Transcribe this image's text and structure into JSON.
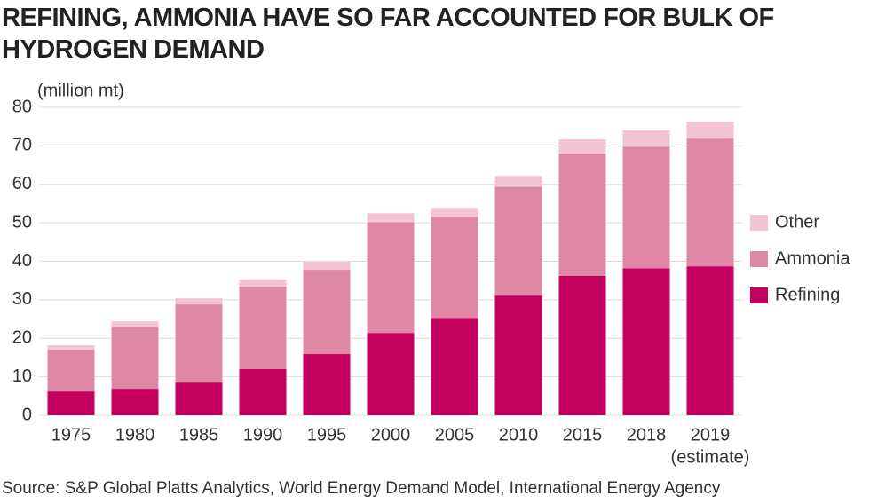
{
  "chart_data": {
    "type": "stacked_bar",
    "title": "REFINING, AMMONIA HAVE SO FAR ACCOUNTED FOR BULK OF HYDROGEN DEMAND",
    "y_label": "(million mt)",
    "categories": [
      "1975",
      "1980",
      "1985",
      "1990",
      "1995",
      "2000",
      "2005",
      "2010",
      "2015",
      "2018",
      "2019"
    ],
    "category_note": "(estimate)",
    "series": [
      {
        "name": "Refining",
        "color": "#c4005f",
        "values": [
          6.2,
          6.9,
          8.5,
          12.0,
          15.9,
          21.4,
          25.3,
          31.1,
          36.2,
          38.2,
          38.7
        ]
      },
      {
        "name": "Ammonia",
        "color": "#de88a5",
        "values": [
          10.8,
          16.1,
          20.3,
          21.4,
          21.9,
          28.8,
          26.3,
          28.3,
          31.8,
          31.6,
          33.2
        ]
      },
      {
        "name": "Other",
        "color": "#f2c4d4",
        "values": [
          1.2,
          1.4,
          1.6,
          1.9,
          2.1,
          2.3,
          2.3,
          2.8,
          3.7,
          4.2,
          4.4
        ]
      }
    ],
    "ylim": [
      0,
      80
    ],
    "yticks": [
      0,
      10,
      20,
      30,
      40,
      50,
      60,
      70,
      80
    ],
    "grid": true,
    "legend": "right",
    "source": "Source: S&P Global Platts Analytics, World Energy Demand Model, International Energy Agency"
  }
}
